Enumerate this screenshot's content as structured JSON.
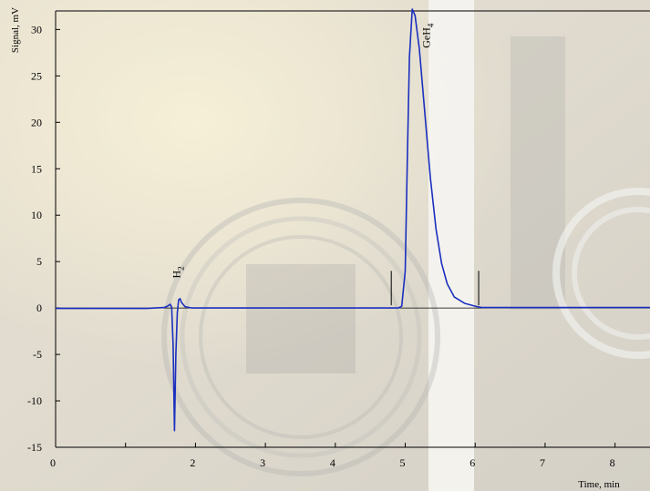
{
  "chart_data": {
    "type": "line",
    "title": "",
    "xlabel": "Time, min",
    "ylabel": "Signal, mV",
    "xlim": [
      0,
      8.5
    ],
    "ylim": [
      -15,
      32
    ],
    "x_ticks": [
      0,
      1,
      2,
      3,
      4,
      5,
      6,
      7,
      8
    ],
    "x_tick_labels": [
      "0",
      "",
      "2",
      "3",
      "4",
      "5",
      "6",
      "7",
      "8"
    ],
    "y_ticks": [
      30,
      25,
      20,
      15,
      10,
      5,
      0,
      -5,
      -10,
      -15
    ],
    "y_tick_labels": [
      "30",
      "25",
      "20",
      "15",
      "10",
      "5",
      "0",
      "-5",
      "-10",
      "-15"
    ],
    "grid": false,
    "colors": {
      "line": "#1a2fbf",
      "axis": "#000000"
    },
    "series": [
      {
        "x": [
          0,
          1.3,
          1.55,
          1.6,
          1.64,
          1.66,
          1.68,
          1.7,
          1.72,
          1.74,
          1.76,
          1.78,
          1.8,
          1.85,
          1.95,
          2.2,
          3,
          4,
          4.9,
          4.95,
          5.0,
          5.03,
          5.06,
          5.1,
          5.14,
          5.2,
          5.28,
          5.36,
          5.44,
          5.52,
          5.6,
          5.7,
          5.85,
          6.0,
          6.1,
          7,
          8,
          8.5
        ],
        "y": [
          -0.05,
          -0.05,
          0.05,
          0.2,
          0.4,
          0.1,
          -4,
          -13.2,
          -5,
          -0.5,
          0.9,
          1.0,
          0.6,
          0.15,
          0.0,
          0.0,
          0.0,
          0.0,
          0.0,
          0.2,
          4,
          16,
          27,
          32.2,
          31.5,
          28,
          21,
          14,
          8.5,
          4.8,
          2.6,
          1.2,
          0.5,
          0.2,
          0.05,
          0.05,
          0.05,
          0.05
        ]
      }
    ],
    "annotations": [
      {
        "text": "H",
        "sub": "2",
        "x": 1.78,
        "y": 3.2
      },
      {
        "text": "GeH",
        "sub": "4",
        "x": 5.35,
        "y": 28
      }
    ],
    "markers": [
      {
        "x": 4.8,
        "y1": 0.3,
        "y2": 4
      },
      {
        "x": 6.05,
        "y1": 0.3,
        "y2": 4
      }
    ]
  }
}
